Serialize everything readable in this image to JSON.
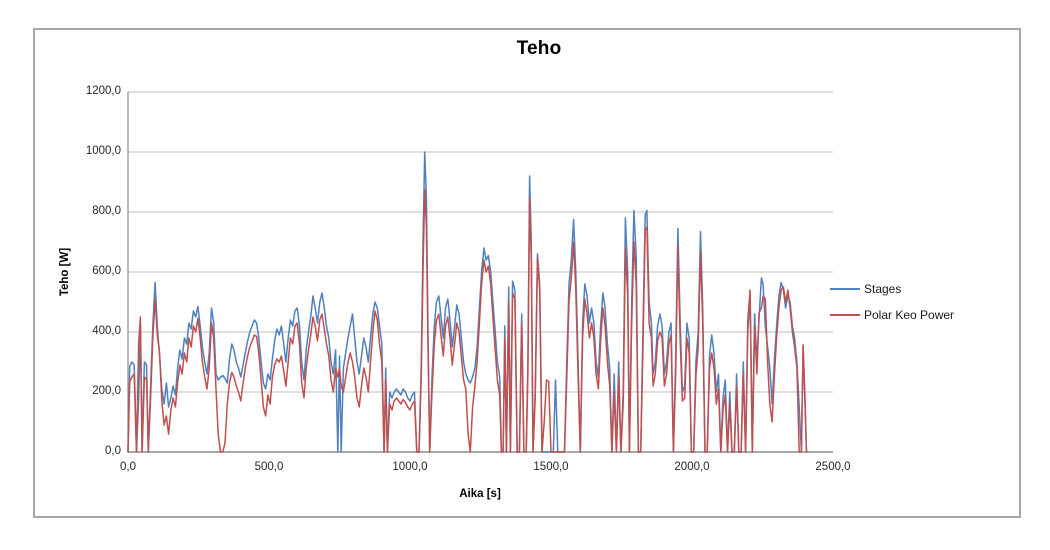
{
  "chart_data": {
    "type": "line",
    "title": "Teho",
    "xlabel": "Aika [s]",
    "ylabel": "Teho [W]",
    "xlim": [
      0,
      2500
    ],
    "ylim": [
      0,
      1200
    ],
    "grid": "horizontal",
    "legend_position": "right",
    "xticks": [
      {
        "value": 0,
        "label": "0,0"
      },
      {
        "value": 500,
        "label": "500,0"
      },
      {
        "value": 1000,
        "label": "1000,0"
      },
      {
        "value": 1500,
        "label": "1500,0"
      },
      {
        "value": 2000,
        "label": "2000,0"
      },
      {
        "value": 2500,
        "label": "2500,0"
      }
    ],
    "yticks": [
      {
        "value": 0,
        "label": "0,0"
      },
      {
        "value": 200,
        "label": "200,0"
      },
      {
        "value": 400,
        "label": "400,0"
      },
      {
        "value": 600,
        "label": "600,0"
      },
      {
        "value": 800,
        "label": "800,0"
      },
      {
        "value": 1000,
        "label": "1000,0"
      },
      {
        "value": 1200,
        "label": "1200,0"
      }
    ],
    "colors": {
      "gridline": "#bfbfbf",
      "axis": "#8c8c8c",
      "frame_border": "#a6a6a6",
      "text": "#262626"
    },
    "series": [
      {
        "name": "Stages",
        "color": "#4F81BD",
        "column": 1
      },
      {
        "name": "Polar Keo Power",
        "color": "#C0504D",
        "column": 2
      }
    ],
    "rows": [
      [
        0,
        0,
        0
      ],
      [
        6,
        285,
        235
      ],
      [
        14,
        300,
        250
      ],
      [
        22,
        290,
        260
      ],
      [
        30,
        0,
        0
      ],
      [
        38,
        180,
        365
      ],
      [
        44,
        430,
        450
      ],
      [
        50,
        0,
        0
      ],
      [
        58,
        300,
        250
      ],
      [
        66,
        290,
        240
      ],
      [
        72,
        0,
        0
      ],
      [
        80,
        220,
        180
      ],
      [
        88,
        420,
        380
      ],
      [
        96,
        565,
        510
      ],
      [
        104,
        420,
        390
      ],
      [
        112,
        320,
        330
      ],
      [
        120,
        210,
        170
      ],
      [
        128,
        160,
        90
      ],
      [
        136,
        230,
        120
      ],
      [
        144,
        150,
        60
      ],
      [
        152,
        180,
        140
      ],
      [
        160,
        220,
        180
      ],
      [
        168,
        190,
        150
      ],
      [
        176,
        280,
        230
      ],
      [
        184,
        340,
        290
      ],
      [
        192,
        310,
        260
      ],
      [
        200,
        380,
        330
      ],
      [
        208,
        360,
        300
      ],
      [
        216,
        430,
        380
      ],
      [
        224,
        410,
        350
      ],
      [
        232,
        470,
        420
      ],
      [
        240,
        450,
        400
      ],
      [
        248,
        485,
        445
      ],
      [
        256,
        420,
        380
      ],
      [
        264,
        350,
        300
      ],
      [
        272,
        300,
        250
      ],
      [
        280,
        260,
        210
      ],
      [
        288,
        330,
        280
      ],
      [
        296,
        480,
        430
      ],
      [
        304,
        430,
        380
      ],
      [
        312,
        260,
        210
      ],
      [
        320,
        240,
        60
      ],
      [
        328,
        250,
        0
      ],
      [
        336,
        255,
        0
      ],
      [
        344,
        245,
        30
      ],
      [
        352,
        230,
        160
      ],
      [
        360,
        310,
        230
      ],
      [
        368,
        360,
        265
      ],
      [
        376,
        340,
        250
      ],
      [
        384,
        300,
        220
      ],
      [
        392,
        280,
        200
      ],
      [
        400,
        250,
        170
      ],
      [
        408,
        290,
        230
      ],
      [
        416,
        330,
        280
      ],
      [
        424,
        370,
        320
      ],
      [
        432,
        400,
        350
      ],
      [
        440,
        420,
        370
      ],
      [
        448,
        440,
        390
      ],
      [
        456,
        430,
        385
      ],
      [
        464,
        380,
        330
      ],
      [
        472,
        300,
        240
      ],
      [
        480,
        230,
        150
      ],
      [
        488,
        210,
        120
      ],
      [
        496,
        260,
        190
      ],
      [
        504,
        240,
        160
      ],
      [
        512,
        310,
        250
      ],
      [
        520,
        370,
        290
      ],
      [
        528,
        410,
        310
      ],
      [
        536,
        390,
        300
      ],
      [
        544,
        420,
        320
      ],
      [
        552,
        360,
        270
      ],
      [
        560,
        300,
        220
      ],
      [
        568,
        380,
        300
      ],
      [
        576,
        440,
        380
      ],
      [
        584,
        420,
        360
      ],
      [
        592,
        470,
        420
      ],
      [
        600,
        480,
        430
      ],
      [
        608,
        420,
        360
      ],
      [
        616,
        300,
        230
      ],
      [
        624,
        240,
        180
      ],
      [
        632,
        340,
        280
      ],
      [
        640,
        400,
        340
      ],
      [
        648,
        450,
        390
      ],
      [
        656,
        520,
        450
      ],
      [
        664,
        480,
        420
      ],
      [
        672,
        430,
        370
      ],
      [
        680,
        500,
        440
      ],
      [
        688,
        530,
        460
      ],
      [
        696,
        480,
        410
      ],
      [
        704,
        420,
        360
      ],
      [
        712,
        380,
        320
      ],
      [
        720,
        300,
        240
      ],
      [
        728,
        260,
        200
      ],
      [
        736,
        340,
        280
      ],
      [
        744,
        0,
        250
      ],
      [
        750,
        320,
        280
      ],
      [
        756,
        0,
        220
      ],
      [
        764,
        280,
        200
      ],
      [
        772,
        330,
        250
      ],
      [
        780,
        380,
        300
      ],
      [
        788,
        420,
        330
      ],
      [
        796,
        460,
        300
      ],
      [
        804,
        380,
        250
      ],
      [
        812,
        300,
        180
      ],
      [
        820,
        260,
        150
      ],
      [
        828,
        320,
        220
      ],
      [
        836,
        380,
        280
      ],
      [
        844,
        350,
        250
      ],
      [
        852,
        300,
        200
      ],
      [
        860,
        380,
        300
      ],
      [
        868,
        460,
        400
      ],
      [
        876,
        500,
        470
      ],
      [
        884,
        480,
        440
      ],
      [
        892,
        420,
        360
      ],
      [
        900,
        360,
        300
      ],
      [
        908,
        0,
        0
      ],
      [
        914,
        280,
        240
      ],
      [
        920,
        0,
        0
      ],
      [
        928,
        200,
        160
      ],
      [
        936,
        180,
        140
      ],
      [
        944,
        200,
        170
      ],
      [
        952,
        210,
        180
      ],
      [
        960,
        200,
        170
      ],
      [
        968,
        190,
        160
      ],
      [
        976,
        210,
        175
      ],
      [
        984,
        200,
        165
      ],
      [
        992,
        180,
        150
      ],
      [
        1000,
        170,
        140
      ],
      [
        1008,
        190,
        160
      ],
      [
        1016,
        200,
        170
      ],
      [
        1024,
        0,
        0
      ],
      [
        1032,
        0,
        0
      ],
      [
        1040,
        300,
        260
      ],
      [
        1046,
        700,
        600
      ],
      [
        1052,
        1000,
        875
      ],
      [
        1058,
        850,
        750
      ],
      [
        1064,
        400,
        350
      ],
      [
        1070,
        0,
        0
      ],
      [
        1078,
        250,
        200
      ],
      [
        1086,
        420,
        360
      ],
      [
        1094,
        500,
        440
      ],
      [
        1102,
        520,
        460
      ],
      [
        1110,
        450,
        390
      ],
      [
        1118,
        380,
        320
      ],
      [
        1126,
        480,
        420
      ],
      [
        1134,
        510,
        450
      ],
      [
        1142,
        440,
        380
      ],
      [
        1150,
        350,
        290
      ],
      [
        1158,
        420,
        360
      ],
      [
        1166,
        490,
        430
      ],
      [
        1174,
        460,
        400
      ],
      [
        1182,
        380,
        320
      ],
      [
        1190,
        300,
        240
      ],
      [
        1198,
        260,
        210
      ],
      [
        1206,
        240,
        60
      ],
      [
        1214,
        230,
        0
      ],
      [
        1222,
        250,
        150
      ],
      [
        1230,
        280,
        220
      ],
      [
        1238,
        350,
        300
      ],
      [
        1246,
        480,
        430
      ],
      [
        1254,
        600,
        560
      ],
      [
        1262,
        680,
        640
      ],
      [
        1270,
        640,
        600
      ],
      [
        1278,
        655,
        620
      ],
      [
        1286,
        600,
        560
      ],
      [
        1294,
        500,
        450
      ],
      [
        1302,
        400,
        340
      ],
      [
        1310,
        300,
        240
      ],
      [
        1318,
        250,
        190
      ],
      [
        1324,
        0,
        0
      ],
      [
        1330,
        0,
        0
      ],
      [
        1336,
        420,
        380
      ],
      [
        1342,
        0,
        0
      ],
      [
        1350,
        550,
        500
      ],
      [
        1356,
        0,
        0
      ],
      [
        1364,
        570,
        530
      ],
      [
        1372,
        540,
        510
      ],
      [
        1380,
        0,
        0
      ],
      [
        1388,
        0,
        0
      ],
      [
        1396,
        460,
        430
      ],
      [
        1404,
        0,
        0
      ],
      [
        1412,
        0,
        0
      ],
      [
        1418,
        300,
        260
      ],
      [
        1424,
        920,
        845
      ],
      [
        1430,
        700,
        640
      ],
      [
        1436,
        0,
        0
      ],
      [
        1444,
        200,
        180
      ],
      [
        1452,
        660,
        645
      ],
      [
        1460,
        560,
        540
      ],
      [
        1468,
        0,
        0
      ],
      [
        1476,
        0,
        100
      ],
      [
        1484,
        0,
        240
      ],
      [
        1492,
        0,
        235
      ],
      [
        1500,
        0,
        0
      ],
      [
        1508,
        0,
        0
      ],
      [
        1516,
        240,
        0
      ],
      [
        1524,
        0,
        0
      ],
      [
        1532,
        0,
        0
      ],
      [
        1540,
        0,
        0
      ],
      [
        1548,
        0,
        0
      ],
      [
        1556,
        300,
        250
      ],
      [
        1564,
        560,
        500
      ],
      [
        1572,
        640,
        580
      ],
      [
        1580,
        775,
        700
      ],
      [
        1588,
        600,
        540
      ],
      [
        1596,
        300,
        250
      ],
      [
        1604,
        0,
        0
      ],
      [
        1612,
        430,
        380
      ],
      [
        1620,
        560,
        510
      ],
      [
        1628,
        520,
        460
      ],
      [
        1636,
        430,
        380
      ],
      [
        1644,
        480,
        430
      ],
      [
        1652,
        430,
        380
      ],
      [
        1660,
        300,
        260
      ],
      [
        1668,
        250,
        210
      ],
      [
        1676,
        420,
        370
      ],
      [
        1684,
        530,
        480
      ],
      [
        1692,
        480,
        420
      ],
      [
        1700,
        360,
        300
      ],
      [
        1708,
        280,
        220
      ],
      [
        1716,
        0,
        0
      ],
      [
        1724,
        260,
        200
      ],
      [
        1732,
        0,
        0
      ],
      [
        1740,
        300,
        250
      ],
      [
        1748,
        0,
        0
      ],
      [
        1756,
        200,
        160
      ],
      [
        1764,
        780,
        680
      ],
      [
        1772,
        600,
        520
      ],
      [
        1778,
        0,
        0
      ],
      [
        1786,
        500,
        430
      ],
      [
        1794,
        805,
        700
      ],
      [
        1802,
        650,
        560
      ],
      [
        1810,
        0,
        0
      ],
      [
        1818,
        0,
        0
      ],
      [
        1826,
        400,
        340
      ],
      [
        1834,
        790,
        740
      ],
      [
        1840,
        805,
        750
      ],
      [
        1848,
        500,
        430
      ],
      [
        1856,
        430,
        380
      ],
      [
        1862,
        260,
        220
      ],
      [
        1870,
        300,
        260
      ],
      [
        1878,
        420,
        370
      ],
      [
        1886,
        460,
        400
      ],
      [
        1894,
        420,
        380
      ],
      [
        1902,
        260,
        220
      ],
      [
        1910,
        300,
        260
      ],
      [
        1918,
        400,
        360
      ],
      [
        1926,
        430,
        390
      ],
      [
        1934,
        0,
        0
      ],
      [
        1942,
        300,
        250
      ],
      [
        1950,
        745,
        685
      ],
      [
        1958,
        430,
        370
      ],
      [
        1966,
        200,
        170
      ],
      [
        1974,
        220,
        180
      ],
      [
        1982,
        430,
        380
      ],
      [
        1990,
        380,
        330
      ],
      [
        1998,
        0,
        0
      ],
      [
        2006,
        0,
        0
      ],
      [
        2014,
        300,
        250
      ],
      [
        2022,
        400,
        350
      ],
      [
        2030,
        735,
        668
      ],
      [
        2038,
        485,
        430
      ],
      [
        2046,
        0,
        0
      ],
      [
        2054,
        0,
        0
      ],
      [
        2062,
        320,
        280
      ],
      [
        2070,
        390,
        330
      ],
      [
        2078,
        330,
        280
      ],
      [
        2086,
        200,
        160
      ],
      [
        2094,
        260,
        210
      ],
      [
        2102,
        0,
        0
      ],
      [
        2110,
        180,
        140
      ],
      [
        2118,
        240,
        190
      ],
      [
        2126,
        0,
        0
      ],
      [
        2134,
        200,
        160
      ],
      [
        2142,
        0,
        0
      ],
      [
        2150,
        0,
        0
      ],
      [
        2158,
        260,
        220
      ],
      [
        2166,
        0,
        0
      ],
      [
        2174,
        0,
        0
      ],
      [
        2182,
        300,
        260
      ],
      [
        2190,
        0,
        0
      ],
      [
        2198,
        400,
        440
      ],
      [
        2206,
        520,
        540
      ],
      [
        2214,
        0,
        0
      ],
      [
        2222,
        460,
        420
      ],
      [
        2230,
        300,
        260
      ],
      [
        2238,
        450,
        465
      ],
      [
        2246,
        580,
        480
      ],
      [
        2252,
        560,
        520
      ],
      [
        2260,
        420,
        510
      ],
      [
        2268,
        350,
        300
      ],
      [
        2276,
        280,
        160
      ],
      [
        2284,
        160,
        100
      ],
      [
        2292,
        300,
        250
      ],
      [
        2300,
        420,
        380
      ],
      [
        2308,
        520,
        480
      ],
      [
        2316,
        565,
        540
      ],
      [
        2324,
        540,
        550
      ],
      [
        2332,
        480,
        500
      ],
      [
        2340,
        520,
        540
      ],
      [
        2348,
        500,
        480
      ],
      [
        2356,
        420,
        400
      ],
      [
        2364,
        380,
        350
      ],
      [
        2372,
        300,
        280
      ],
      [
        2380,
        150,
        0
      ],
      [
        2388,
        0,
        0
      ],
      [
        2394,
        350,
        357
      ],
      [
        2400,
        200,
        180
      ],
      [
        2406,
        0,
        0
      ]
    ]
  }
}
